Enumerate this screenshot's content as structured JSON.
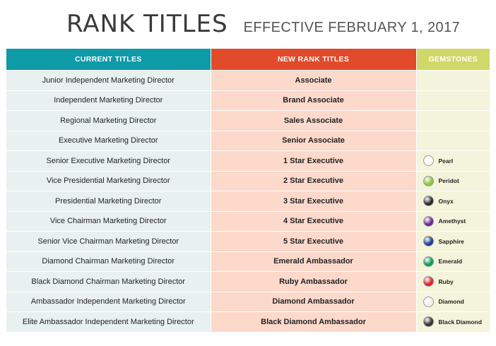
{
  "heading": {
    "title": "RANK TITLES",
    "subtitle": "EFFECTIVE FEBRUARY 1, 2017"
  },
  "table": {
    "headers": {
      "current": "CURRENT TITLES",
      "new": "NEW RANK TITLES",
      "gem": "GEMSTONES"
    },
    "rows": [
      {
        "current": "Junior Independent Marketing Director",
        "new": "Associate",
        "gem": "",
        "gem_color": ""
      },
      {
        "current": "Independent Marketing Director",
        "new": "Brand Associate",
        "gem": "",
        "gem_color": ""
      },
      {
        "current": "Regional Marketing Director",
        "new": "Sales Associate",
        "gem": "",
        "gem_color": ""
      },
      {
        "current": "Executive Marketing Director",
        "new": "Senior Associate",
        "gem": "",
        "gem_color": ""
      },
      {
        "current": "Senior Executive Marketing Director",
        "new": "1 Star Executive",
        "gem": "Pearl",
        "gem_color": "#f7f7f2"
      },
      {
        "current": "Vice Presidential Marketing Director",
        "new": "2 Star Executive",
        "gem": "Peridot",
        "gem_color": "#8dc63f"
      },
      {
        "current": "Presidential Marketing Director",
        "new": "3 Star Executive",
        "gem": "Onyx",
        "gem_color": "#2a2a2a"
      },
      {
        "current": "Vice Chairman Marketing Director",
        "new": "4 Star Executive",
        "gem": "Amethyst",
        "gem_color": "#6b2c91"
      },
      {
        "current": "Senior Vice Chairman Marketing Director",
        "new": "5 Star Executive",
        "gem": "Sapphire",
        "gem_color": "#1c3f8f"
      },
      {
        "current": "Diamond Chairman Marketing Director",
        "new": "Emerald Ambassador",
        "gem": "Emerald",
        "gem_color": "#0f9a5a"
      },
      {
        "current": "Black Diamond Chairman Marketing Director",
        "new": "Ruby Ambassador",
        "gem": "Ruby",
        "gem_color": "#d7262f"
      },
      {
        "current": "Ambassador Independent Marketing Director",
        "new": "Diamond Ambassador",
        "gem": "Diamond",
        "gem_color": "#f0f0f0"
      },
      {
        "current": "Elite Ambassador Independent Marketing Director",
        "new": "Black Diamond Ambassador",
        "gem": "Black Diamond",
        "gem_color": "#333333"
      }
    ]
  }
}
